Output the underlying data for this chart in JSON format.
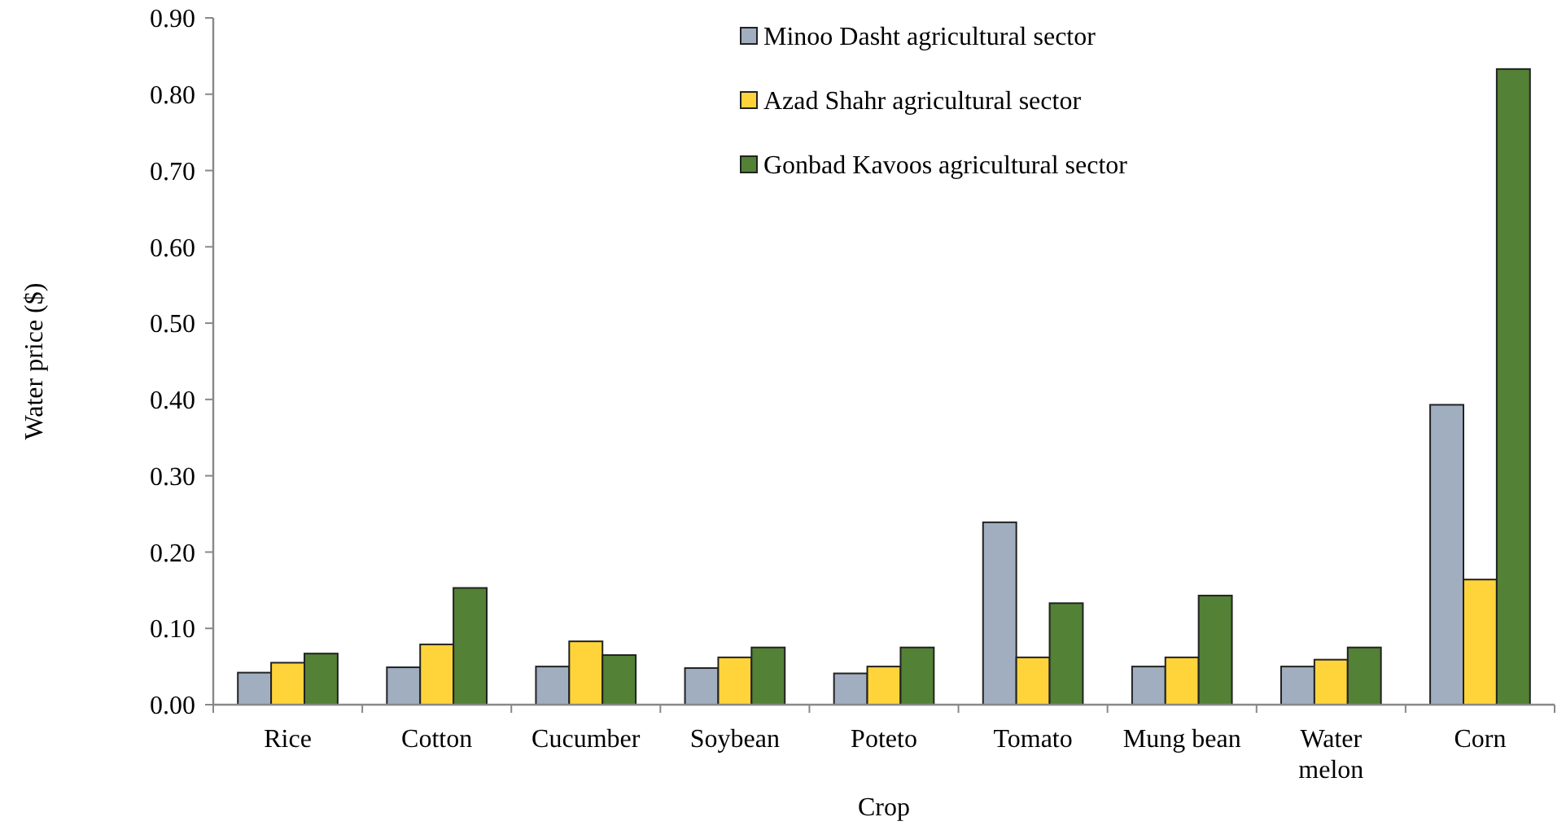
{
  "chart_data": {
    "type": "bar",
    "xlabel": "Crop",
    "ylabel": "Water price ($)",
    "categories": [
      "Rice",
      "Cotton",
      "Cucumber",
      "Soybean",
      "Poteto",
      "Tomato",
      "Mung bean",
      "Water melon",
      "Corn"
    ],
    "series": [
      {
        "name": "Minoo Dasht agricultural sector",
        "color": "#a0aec0",
        "values": [
          0.042,
          0.049,
          0.05,
          0.048,
          0.041,
          0.239,
          0.05,
          0.05,
          0.393
        ]
      },
      {
        "name": "Azad Shahr agricultural sector",
        "color": "#ffd43b",
        "values": [
          0.055,
          0.079,
          0.083,
          0.062,
          0.05,
          0.062,
          0.062,
          0.059,
          0.164
        ]
      },
      {
        "name": "Gonbad Kavoos agricultural sector",
        "color": "#538135",
        "values": [
          0.067,
          0.153,
          0.065,
          0.075,
          0.075,
          0.133,
          0.143,
          0.075,
          0.833
        ]
      }
    ],
    "ylim": [
      0,
      0.9
    ],
    "yticks": [
      {
        "value": 0,
        "label": "0.00"
      },
      {
        "value": 0.1,
        "label": "0.10"
      },
      {
        "value": 0.2,
        "label": "0.20"
      },
      {
        "value": 0.3,
        "label": "0.30"
      },
      {
        "value": 0.4,
        "label": "0.40"
      },
      {
        "value": 0.5,
        "label": "0.50"
      },
      {
        "value": 0.6,
        "label": "0.60"
      },
      {
        "value": 0.7,
        "label": "0.70"
      },
      {
        "value": 0.8,
        "label": "0.80"
      },
      {
        "value": 0.9,
        "label": "0.90"
      }
    ],
    "grid": false,
    "legend": "top right"
  }
}
